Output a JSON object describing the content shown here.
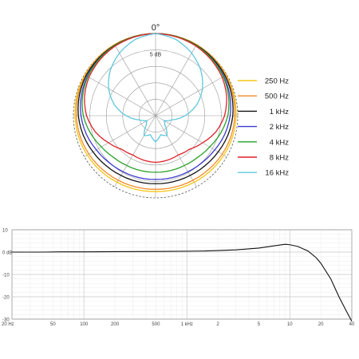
{
  "chart_data": [
    {
      "type": "polar",
      "top_label": "0°",
      "ring_label": "5 dB",
      "rings_db": [
        0,
        -5,
        -10,
        -15,
        -20,
        -25
      ],
      "spoke_step_deg": 30,
      "legend_position": "right",
      "series": [
        {
          "name": "250 Hz",
          "color": "#f5c518",
          "levels": [
            0,
            0,
            0,
            -0.1,
            -0.2,
            -0.3,
            -0.5,
            -0.7,
            -1,
            -1.3,
            -1.6,
            -1.8,
            -1.9
          ]
        },
        {
          "name": "500 Hz",
          "color": "#f28c28",
          "levels": [
            0,
            0,
            -0.1,
            -0.2,
            -0.4,
            -0.6,
            -0.9,
            -1.2,
            -1.6,
            -2,
            -2.3,
            -2.5,
            -2.6
          ]
        },
        {
          "name": "1 kHz",
          "color": "#111111",
          "levels": [
            0,
            -0.1,
            -0.2,
            -0.4,
            -0.6,
            -1,
            -1.5,
            -2.2,
            -3,
            -3.6,
            -4,
            -4.2,
            -4.3
          ]
        },
        {
          "name": "2 kHz",
          "color": "#3a3ad0",
          "levels": [
            0,
            -0.1,
            -0.3,
            -0.6,
            -1,
            -1.6,
            -2.3,
            -3.2,
            -4.2,
            -4.9,
            -5.3,
            -5.5,
            -5.6
          ]
        },
        {
          "name": "4 kHz",
          "color": "#2aa02a",
          "levels": [
            0,
            -0.1,
            -0.3,
            -0.7,
            -1.2,
            -2,
            -3,
            -4.5,
            -6,
            -7,
            -7.5,
            -7.7,
            -7.8
          ]
        },
        {
          "name": "8 kHz",
          "color": "#e0202a",
          "levels": [
            0,
            -0.2,
            -0.5,
            -1,
            -1.6,
            -2.6,
            -4,
            -6,
            -8.5,
            -10.5,
            -11.2,
            -11,
            -10.8
          ]
        },
        {
          "name": "16 kHz",
          "color": "#5ec8dd",
          "levels": [
            0,
            -1,
            -3,
            -5.5,
            -8.5,
            -12,
            -16,
            -20,
            -22,
            -21,
            -18,
            -19,
            -17
          ]
        }
      ]
    },
    {
      "type": "line",
      "xscale": "log",
      "x_ticks": [
        20,
        50,
        100,
        200,
        500,
        1000,
        2000,
        5000,
        10000,
        20000,
        40000
      ],
      "x_tick_labels": [
        "20 Hz",
        "50",
        "100",
        "200",
        "500",
        "1 kHz",
        "2",
        "5",
        "10",
        "20",
        "40"
      ],
      "xlim": [
        20,
        40000
      ],
      "y_ticks": [
        10,
        0,
        -10,
        -20,
        -30
      ],
      "y_tick_labels": [
        "10",
        "0 dB",
        "-10",
        "-20",
        "-30"
      ],
      "ylim": [
        -30,
        10
      ],
      "grid": true,
      "series": [
        {
          "color": "#111111",
          "x": [
            20,
            40,
            60,
            100,
            200,
            500,
            1000,
            1500,
            2000,
            3000,
            5000,
            7000,
            9000,
            10000,
            12000,
            15000,
            18000,
            20000,
            25000,
            30000,
            35000,
            40000
          ],
          "y": [
            0,
            0,
            0.1,
            0.1,
            0.2,
            0.3,
            0.4,
            0.5,
            0.7,
            1.0,
            1.8,
            2.8,
            3.5,
            3.3,
            2.5,
            0.5,
            -2.5,
            -5,
            -12,
            -20,
            -26,
            -31
          ]
        }
      ]
    }
  ]
}
